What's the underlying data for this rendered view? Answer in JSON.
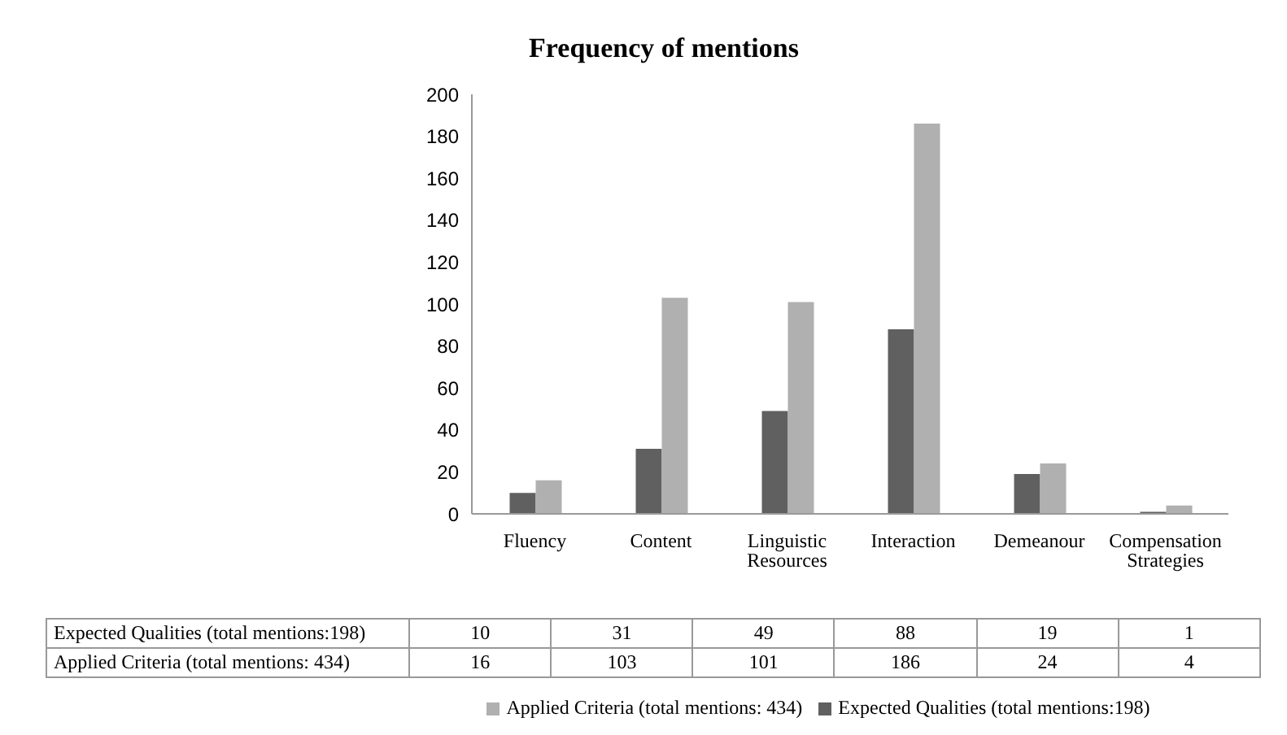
{
  "chart_data": {
    "type": "bar",
    "title": "Frequency of mentions",
    "categories": [
      "Fluency",
      "Content",
      "Linguistic Resources",
      "Interaction",
      "Demeanour",
      "Compensation Strategies"
    ],
    "series": [
      {
        "name": "Expected Qualities (total mentions:198)",
        "color": "#606060",
        "values": [
          10,
          31,
          49,
          88,
          19,
          1
        ]
      },
      {
        "name": "Applied Criteria (total mentions: 434)",
        "color": "#b0b0b0",
        "values": [
          16,
          103,
          101,
          186,
          24,
          4
        ]
      }
    ],
    "ylim": [
      0,
      200
    ],
    "yticks": [
      0,
      20,
      40,
      60,
      80,
      100,
      120,
      140,
      160,
      180,
      200
    ],
    "data_labels": true,
    "legend": "bottom"
  }
}
